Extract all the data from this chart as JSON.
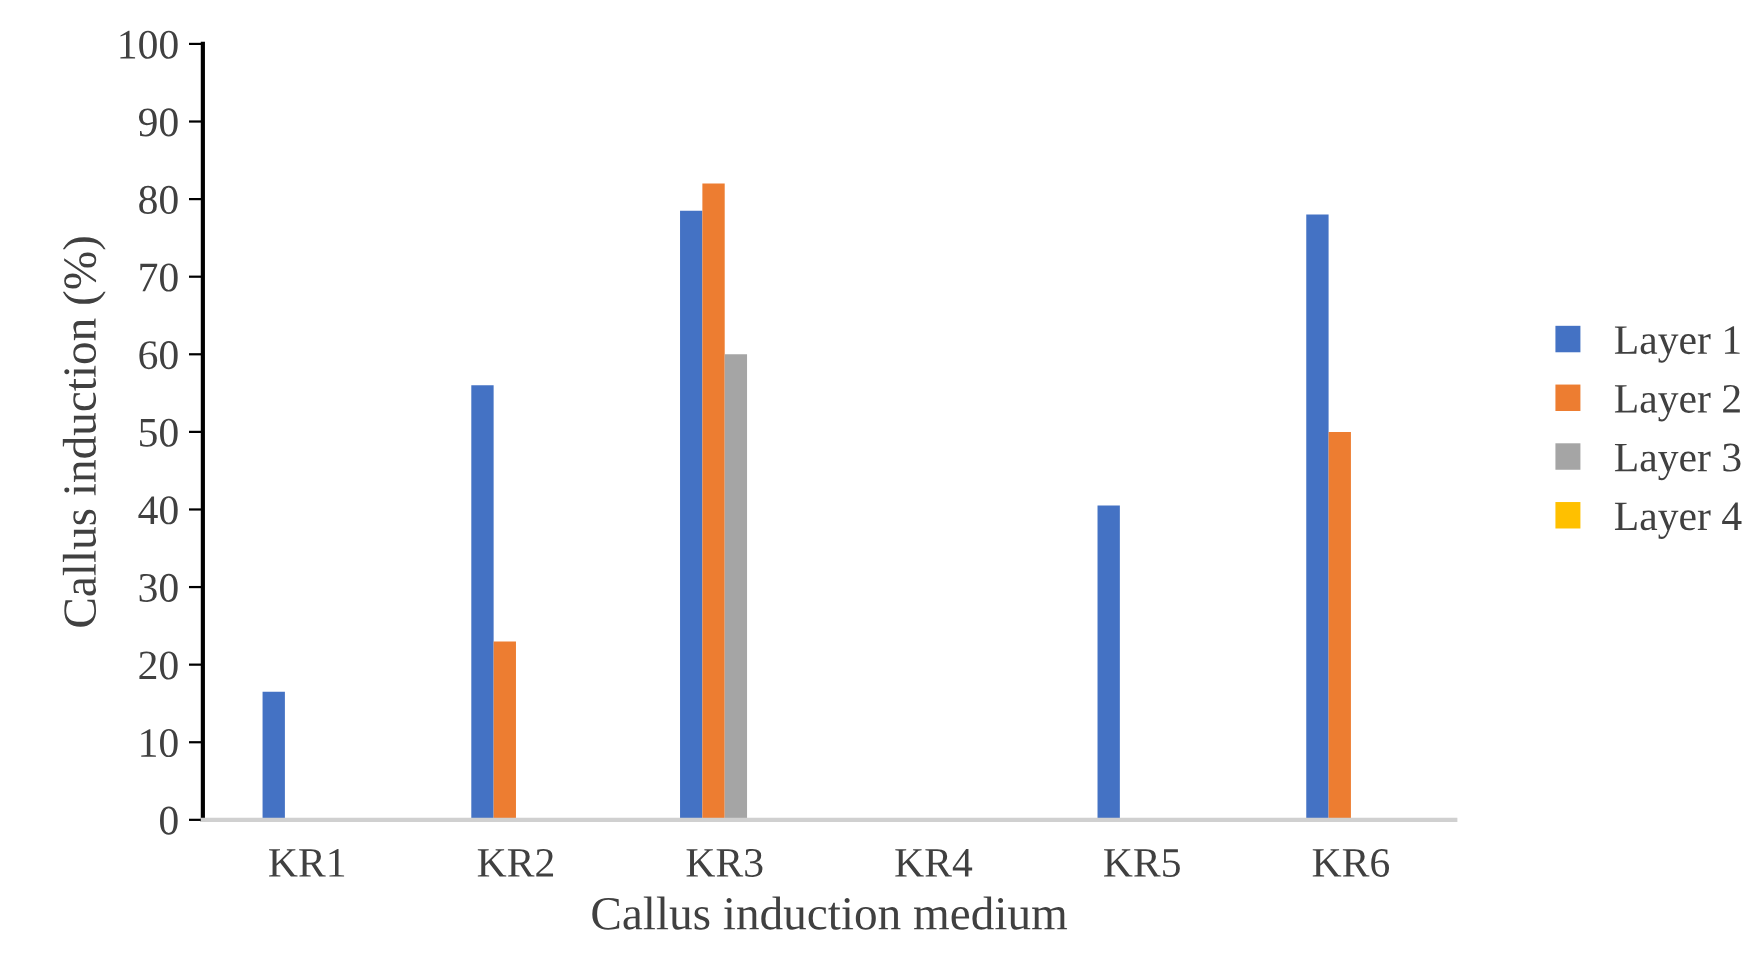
{
  "chart_data": {
    "type": "bar",
    "xlabel": "Callus induction medium",
    "ylabel": "Callus induction (%)",
    "categories": [
      "KR1",
      "KR2",
      "KR3",
      "KR4",
      "KR5",
      "KR6"
    ],
    "series": [
      {
        "name": "Layer 1",
        "color": "#4472c4",
        "values": [
          16.5,
          56,
          78.5,
          0,
          40.5,
          78
        ]
      },
      {
        "name": "Layer 2",
        "color": "#ed7d31",
        "values": [
          0,
          23,
          82,
          0,
          0,
          50
        ]
      },
      {
        "name": "Layer 3",
        "color": "#a5a5a5",
        "values": [
          0,
          0,
          60,
          0,
          0,
          0
        ]
      },
      {
        "name": "Layer 4",
        "color": "#ffc000",
        "values": [
          0,
          0,
          0,
          0,
          0,
          0
        ]
      }
    ],
    "ylim": [
      0,
      100
    ],
    "yticks": [
      0,
      10,
      20,
      30,
      40,
      50,
      60,
      70,
      80,
      90,
      100
    ],
    "grid": false,
    "legend": "right"
  }
}
